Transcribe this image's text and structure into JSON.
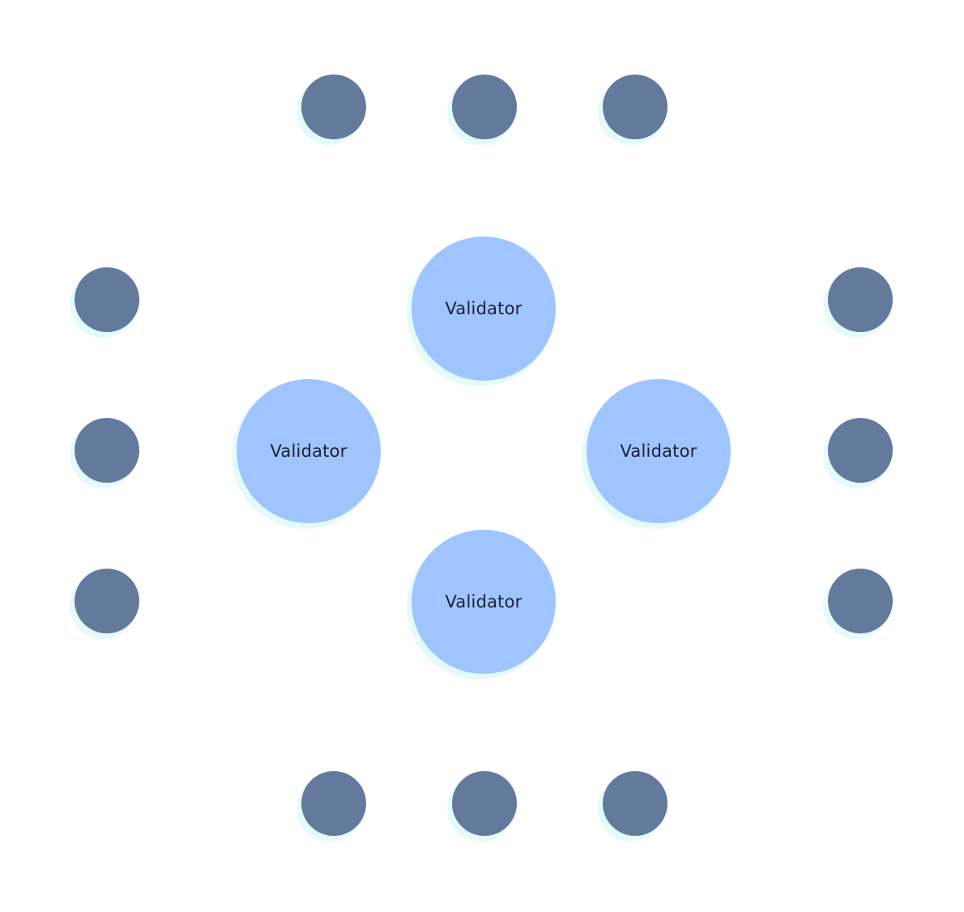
{
  "colors": {
    "background": "#ffffff",
    "peer_fill": "#647a9c",
    "validator_fill": "#a0c4ff",
    "halo": "#e4fbfc",
    "label": "#1a2233"
  },
  "validators": [
    {
      "id": "top",
      "label": "Validator"
    },
    {
      "id": "left",
      "label": "Validator"
    },
    {
      "id": "right",
      "label": "Validator"
    },
    {
      "id": "bottom",
      "label": "Validator"
    }
  ],
  "peers": [
    {
      "id": "top-1"
    },
    {
      "id": "top-2"
    },
    {
      "id": "top-3"
    },
    {
      "id": "left-1"
    },
    {
      "id": "left-2"
    },
    {
      "id": "left-3"
    },
    {
      "id": "right-1"
    },
    {
      "id": "right-2"
    },
    {
      "id": "right-3"
    },
    {
      "id": "bottom-1"
    },
    {
      "id": "bottom-2"
    },
    {
      "id": "bottom-3"
    }
  ]
}
